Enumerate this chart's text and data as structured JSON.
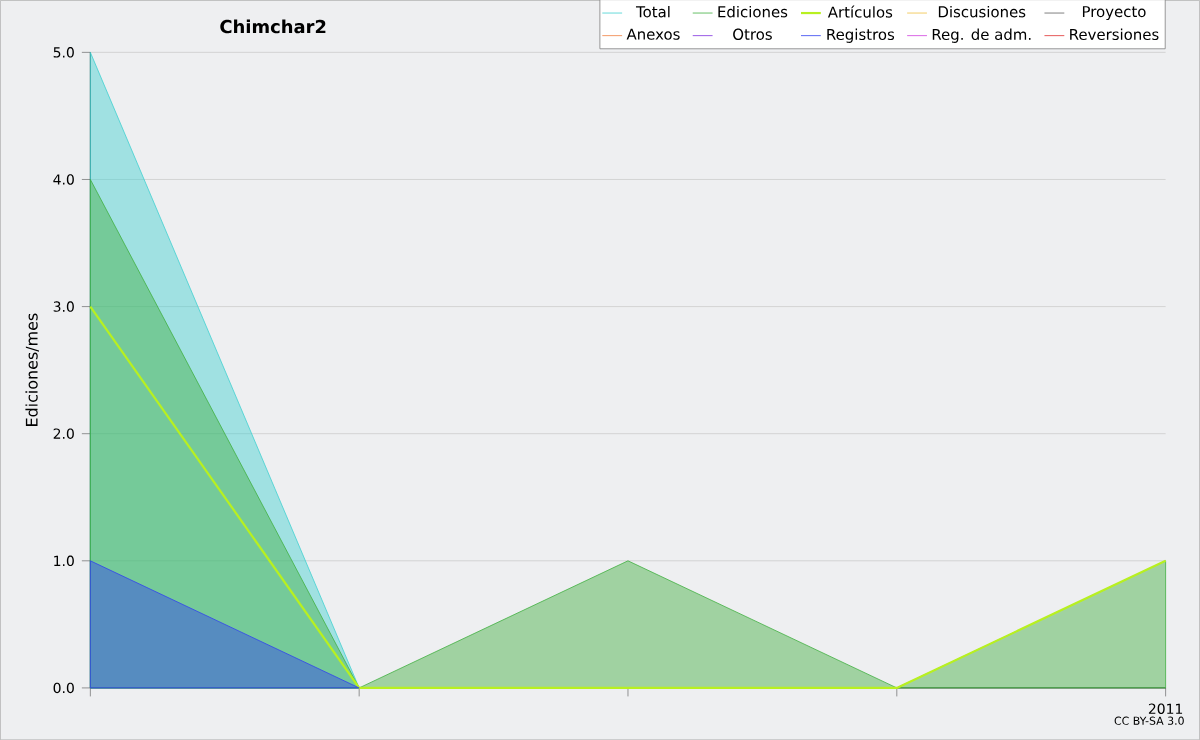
{
  "chart_data": {
    "type": "area",
    "title": "Chimchar2",
    "ylabel": "Ediciones/mes",
    "categories": [
      null,
      null,
      null,
      null,
      "2011"
    ],
    "ylim": [
      0,
      5
    ],
    "yticks": [
      {
        "value": 0,
        "label": "0.0"
      },
      {
        "value": 1,
        "label": "1.0"
      },
      {
        "value": 2,
        "label": "2.0"
      },
      {
        "value": 3,
        "label": "3.0"
      },
      {
        "value": 4,
        "label": "4.0"
      },
      {
        "value": 5,
        "label": "5.0"
      }
    ],
    "grid": "y",
    "legend": "top right",
    "annotations": [
      "CC BY-SA 3.0"
    ],
    "series": [
      {
        "name": "Total",
        "color": "#40d0d0",
        "values": [
          5,
          0,
          null,
          null,
          null
        ]
      },
      {
        "name": "Ediciones",
        "color": "#40b040",
        "values": [
          4,
          0,
          1,
          0,
          1
        ]
      },
      {
        "name": "Artículos",
        "type": "line",
        "color": "#b8f020",
        "values": [
          3,
          0,
          0,
          0,
          1
        ]
      },
      {
        "name": "Discusiones",
        "type": "line",
        "color": "#f0c040",
        "values": [
          null,
          null,
          null,
          null,
          null
        ]
      },
      {
        "name": "Proyecto",
        "type": "line",
        "color": "#606060",
        "values": [
          null,
          null,
          null,
          null,
          null
        ]
      },
      {
        "name": "Anexos",
        "type": "line",
        "color": "#f08040",
        "values": [
          null,
          null,
          null,
          null,
          null
        ]
      },
      {
        "name": "Otros",
        "type": "line",
        "color": "#8030e0",
        "values": [
          null,
          null,
          null,
          null,
          null
        ]
      },
      {
        "name": "Registros",
        "color": "#3040f0",
        "values": [
          1,
          0,
          null,
          null,
          null
        ]
      },
      {
        "name": "Reg. de adm.",
        "type": "line",
        "color": "#d040e0",
        "values": [
          null,
          null,
          null,
          null,
          null
        ]
      },
      {
        "name": "Reversiones",
        "type": "line",
        "color": "#e03030",
        "values": [
          null,
          null,
          null,
          null,
          null
        ]
      }
    ]
  }
}
